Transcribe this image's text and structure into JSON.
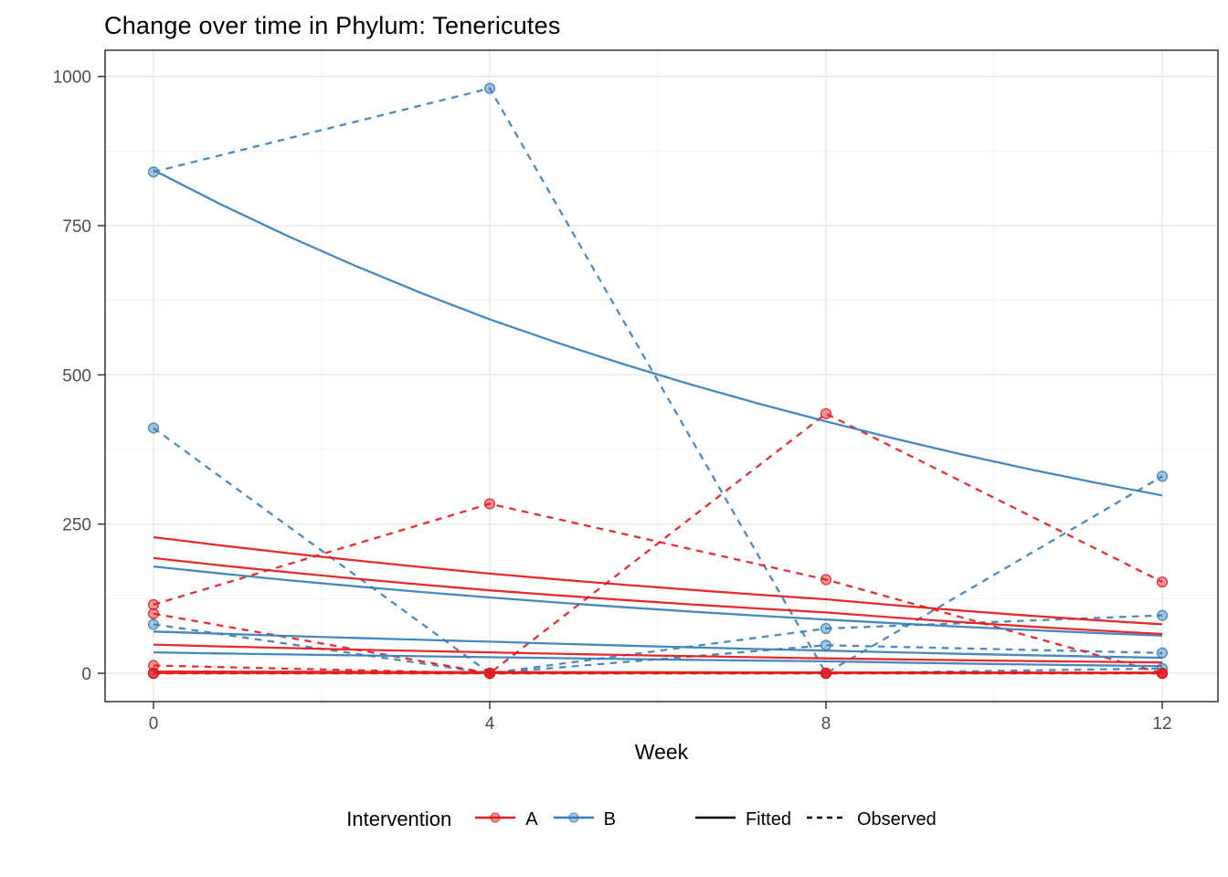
{
  "page": {
    "title": "Change over time in Phylum: Tenericutes"
  },
  "axes": {
    "x": {
      "label": "Week",
      "ticks": [
        "0",
        "4",
        "8",
        "12"
      ]
    },
    "y": {
      "ticks": [
        "0",
        "250",
        "500",
        "750",
        "1000"
      ]
    }
  },
  "legend": {
    "title": "Intervention",
    "color_items": [
      {
        "label": "A",
        "color": "#E41A1C"
      },
      {
        "label": "B",
        "color": "#377EB8"
      }
    ],
    "linetype_items": [
      {
        "label": "Fitted",
        "linetype": "solid"
      },
      {
        "label": "Observed",
        "linetype": "dashed"
      }
    ]
  },
  "chart_data": {
    "type": "line",
    "title": "Change over time in Phylum: Tenericutes",
    "xlabel": "Week",
    "ylabel": "",
    "x": [
      0,
      4,
      8,
      12
    ],
    "x_tick_labels": [
      "0",
      "4",
      "8",
      "12"
    ],
    "y_ticks": [
      0,
      250,
      500,
      750,
      1000
    ],
    "y_minor_ticks": [
      125,
      375,
      625,
      875
    ],
    "x_minor_ticks": [
      2,
      6,
      10
    ],
    "xlim": [
      -0.6,
      12.66
    ],
    "ylim": [
      -47,
      1044
    ],
    "grid": "on",
    "legend_position": "bottom",
    "colors": {
      "A": "#E41A1C",
      "B": "#377EB8"
    },
    "series": [
      {
        "id": "B1",
        "intervention": "B",
        "fitted": [
          843,
          593,
          422,
          298
        ],
        "observed": [
          840,
          980,
          0,
          330
        ]
      },
      {
        "id": "B2",
        "intervention": "B",
        "fitted": [
          179,
          127,
          90,
          63
        ],
        "observed": [
          411,
          0,
          75,
          97
        ]
      },
      {
        "id": "B3",
        "intervention": "B",
        "fitted": [
          70,
          53,
          38,
          26
        ],
        "observed": [
          82,
          0,
          47,
          34
        ]
      },
      {
        "id": "B4",
        "intervention": "B",
        "fitted": [
          35,
          27,
          20,
          12
        ],
        "observed": [
          0,
          0,
          0,
          8
        ]
      },
      {
        "id": "A1",
        "intervention": "A",
        "fitted": [
          228,
          167,
          124,
          82
        ],
        "observed": [
          115,
          284,
          157,
          0
        ]
      },
      {
        "id": "A2",
        "intervention": "A",
        "fitted": [
          193,
          139,
          102,
          66
        ],
        "observed": [
          100,
          0,
          435,
          153
        ]
      },
      {
        "id": "A3",
        "intervention": "A",
        "fitted": [
          48,
          35,
          25,
          18
        ],
        "observed": [
          13,
          0,
          0,
          0
        ]
      },
      {
        "id": "A4",
        "intervention": "A",
        "fitted": [
          3,
          2,
          1.5,
          1
        ],
        "observed": [
          0,
          0,
          0,
          0
        ]
      },
      {
        "id": "A5",
        "intervention": "A",
        "fitted": [
          0.5,
          0.5,
          0.5,
          0.5
        ],
        "observed": [
          0,
          0,
          0,
          0
        ]
      }
    ]
  }
}
